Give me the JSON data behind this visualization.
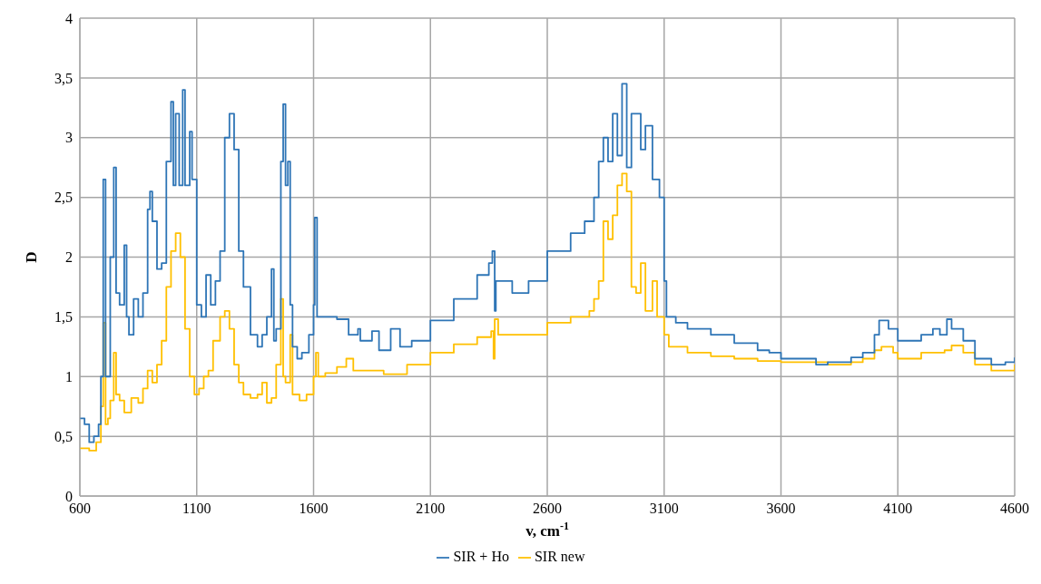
{
  "chart_data": {
    "type": "step",
    "xlabel": "v, cm$^{-1}$",
    "ylabel": "D",
    "xlim": [
      600,
      4600
    ],
    "xticks": [
      600,
      1100,
      1600,
      2100,
      2600,
      3100,
      3600,
      4100,
      4600
    ],
    "ylim": [
      0,
      4
    ],
    "yticks": [
      0,
      {
        "value": 0.5,
        "label": "0,5"
      },
      1,
      {
        "value": 1.5,
        "label": "1,5"
      },
      2,
      {
        "value": 2.5,
        "label": "2,5"
      },
      3,
      {
        "value": 3.5,
        "label": "3,5"
      },
      4
    ],
    "grid": true,
    "legend": "bottom",
    "marker": "none",
    "line_style": "solid",
    "series": [
      {
        "name": "SIR new",
        "color": "#ffc000",
        "x": [
          600,
          640,
          670,
          690,
          700,
          710,
          720,
          730,
          745,
          755,
          770,
          790,
          820,
          850,
          870,
          890,
          910,
          930,
          950,
          970,
          990,
          1010,
          1030,
          1050,
          1070,
          1090,
          1110,
          1130,
          1150,
          1170,
          1200,
          1220,
          1240,
          1260,
          1280,
          1300,
          1330,
          1360,
          1380,
          1400,
          1420,
          1440,
          1460,
          1470,
          1480,
          1500,
          1510,
          1540,
          1570,
          1600,
          1610,
          1620,
          1650,
          1700,
          1740,
          1770,
          1850,
          1900,
          2000,
          2100,
          2200,
          2300,
          2360,
          2370,
          2375,
          2390,
          2500,
          2600,
          2700,
          2780,
          2800,
          2820,
          2840,
          2860,
          2880,
          2900,
          2920,
          2940,
          2960,
          2980,
          3000,
          3020,
          3050,
          3070,
          3100,
          3120,
          3200,
          3300,
          3400,
          3500,
          3600,
          3700,
          3800,
          3900,
          3950,
          4000,
          4030,
          4080,
          4100,
          4200,
          4300,
          4330,
          4380,
          4430,
          4500,
          4600
        ],
        "values": [
          0.4,
          0.38,
          0.45,
          0.75,
          1.45,
          0.6,
          0.65,
          0.8,
          1.2,
          0.85,
          0.8,
          0.7,
          0.82,
          0.78,
          0.9,
          1.05,
          0.95,
          1.1,
          1.3,
          1.75,
          2.05,
          2.2,
          2.0,
          1.4,
          1.0,
          0.85,
          0.9,
          1.0,
          1.05,
          1.3,
          1.5,
          1.55,
          1.4,
          1.1,
          0.95,
          0.85,
          0.82,
          0.85,
          0.95,
          0.78,
          0.82,
          1.1,
          1.65,
          1.0,
          0.95,
          1.35,
          0.85,
          0.8,
          0.85,
          1.0,
          1.2,
          1.0,
          1.03,
          1.08,
          1.15,
          1.05,
          1.05,
          1.02,
          1.1,
          1.2,
          1.27,
          1.33,
          1.38,
          1.15,
          1.48,
          1.35,
          1.35,
          1.45,
          1.5,
          1.55,
          1.65,
          1.8,
          2.3,
          2.15,
          2.35,
          2.6,
          2.7,
          2.55,
          1.75,
          1.7,
          1.95,
          1.55,
          1.8,
          1.5,
          1.35,
          1.25,
          1.2,
          1.17,
          1.15,
          1.13,
          1.12,
          1.12,
          1.1,
          1.12,
          1.15,
          1.22,
          1.25,
          1.2,
          1.15,
          1.2,
          1.22,
          1.26,
          1.2,
          1.1,
          1.05,
          1.1
        ]
      },
      {
        "name": "SIR + Ho",
        "color": "#2e75b6",
        "x": [
          600,
          620,
          640,
          660,
          680,
          690,
          700,
          710,
          720,
          730,
          745,
          755,
          770,
          790,
          800,
          810,
          830,
          850,
          870,
          890,
          900,
          910,
          930,
          950,
          970,
          990,
          1000,
          1010,
          1025,
          1040,
          1050,
          1070,
          1080,
          1100,
          1120,
          1140,
          1160,
          1180,
          1200,
          1220,
          1240,
          1260,
          1280,
          1300,
          1330,
          1360,
          1380,
          1400,
          1420,
          1430,
          1440,
          1460,
          1470,
          1480,
          1490,
          1500,
          1510,
          1530,
          1550,
          1580,
          1600,
          1605,
          1615,
          1630,
          1660,
          1700,
          1750,
          1790,
          1800,
          1850,
          1880,
          1930,
          1970,
          2020,
          2100,
          2200,
          2300,
          2350,
          2365,
          2375,
          2380,
          2450,
          2520,
          2600,
          2700,
          2760,
          2800,
          2820,
          2840,
          2860,
          2880,
          2900,
          2920,
          2940,
          2960,
          3000,
          3020,
          3050,
          3080,
          3100,
          3110,
          3150,
          3200,
          3300,
          3400,
          3500,
          3550,
          3600,
          3700,
          3750,
          3800,
          3900,
          3950,
          4000,
          4020,
          4060,
          4100,
          4150,
          4200,
          4250,
          4280,
          4310,
          4330,
          4380,
          4430,
          4500,
          4560,
          4600
        ],
        "values": [
          0.65,
          0.6,
          0.45,
          0.5,
          0.6,
          1.0,
          2.65,
          1.0,
          1.0,
          2.0,
          2.75,
          1.7,
          1.6,
          2.1,
          1.5,
          1.35,
          1.65,
          1.5,
          1.7,
          2.4,
          2.55,
          2.3,
          1.9,
          1.95,
          2.8,
          3.3,
          2.6,
          3.2,
          2.6,
          3.4,
          2.6,
          3.05,
          2.65,
          1.6,
          1.5,
          1.85,
          1.6,
          1.8,
          2.05,
          3.0,
          3.2,
          2.9,
          2.05,
          1.75,
          1.35,
          1.25,
          1.35,
          1.5,
          1.9,
          1.3,
          1.4,
          2.8,
          3.28,
          2.6,
          2.8,
          1.6,
          1.25,
          1.15,
          1.2,
          1.35,
          1.6,
          2.33,
          1.5,
          1.5,
          1.5,
          1.48,
          1.35,
          1.4,
          1.3,
          1.38,
          1.22,
          1.4,
          1.25,
          1.3,
          1.47,
          1.65,
          1.85,
          1.95,
          2.05,
          1.55,
          1.8,
          1.7,
          1.8,
          2.05,
          2.2,
          2.3,
          2.5,
          2.8,
          3.0,
          2.8,
          3.2,
          2.85,
          3.45,
          2.75,
          3.2,
          2.9,
          3.1,
          2.65,
          2.5,
          1.8,
          1.5,
          1.45,
          1.4,
          1.35,
          1.28,
          1.22,
          1.2,
          1.15,
          1.15,
          1.1,
          1.12,
          1.16,
          1.2,
          1.35,
          1.47,
          1.4,
          1.3,
          1.3,
          1.35,
          1.4,
          1.35,
          1.48,
          1.4,
          1.3,
          1.15,
          1.1,
          1.12,
          1.16
        ]
      }
    ]
  }
}
